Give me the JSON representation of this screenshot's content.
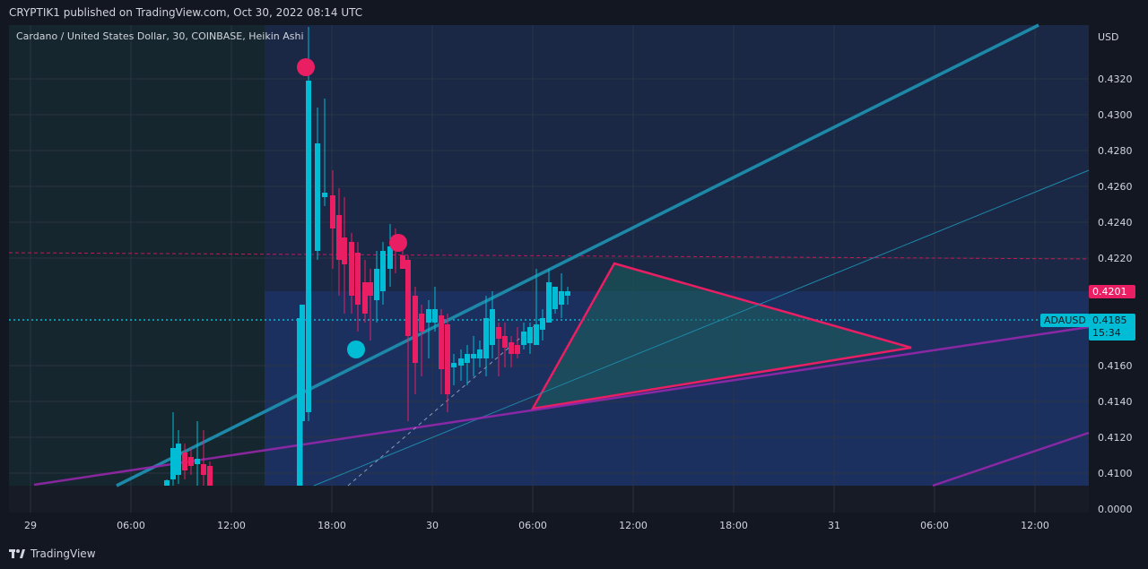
{
  "header": {
    "published": "CRYPTIK1 published on TradingView.com, Oct 30, 2022 08:14 UTC"
  },
  "symbol": {
    "title": "Cardano / United States Dollar, 30, COINBASE, Heikin Ashi"
  },
  "axis": {
    "currency": "USD",
    "y_ticks": [
      "0.4320",
      "0.4300",
      "0.4280",
      "0.4260",
      "0.4240",
      "0.4220",
      "0.4160",
      "0.4140",
      "0.4120",
      "0.4100",
      "0.0000"
    ],
    "x_ticks": [
      "29",
      "06:00",
      "12:00",
      "18:00",
      "30",
      "06:00",
      "12:00",
      "18:00",
      "31",
      "06:00",
      "12:00"
    ]
  },
  "labels": {
    "ticker": "ADAUSD",
    "last_price": "0.4185",
    "countdown": "15:34",
    "alt_price": "0.4201"
  },
  "colors": {
    "background": "#131722",
    "panel": "#1e222d",
    "bull": "#00bcd4",
    "bear": "#e91e63",
    "trend": "#1e88a8",
    "purple": "#9c27b0",
    "triangle_fill": "#1a5e5a"
  },
  "footer": {
    "brand": "TradingView"
  }
}
